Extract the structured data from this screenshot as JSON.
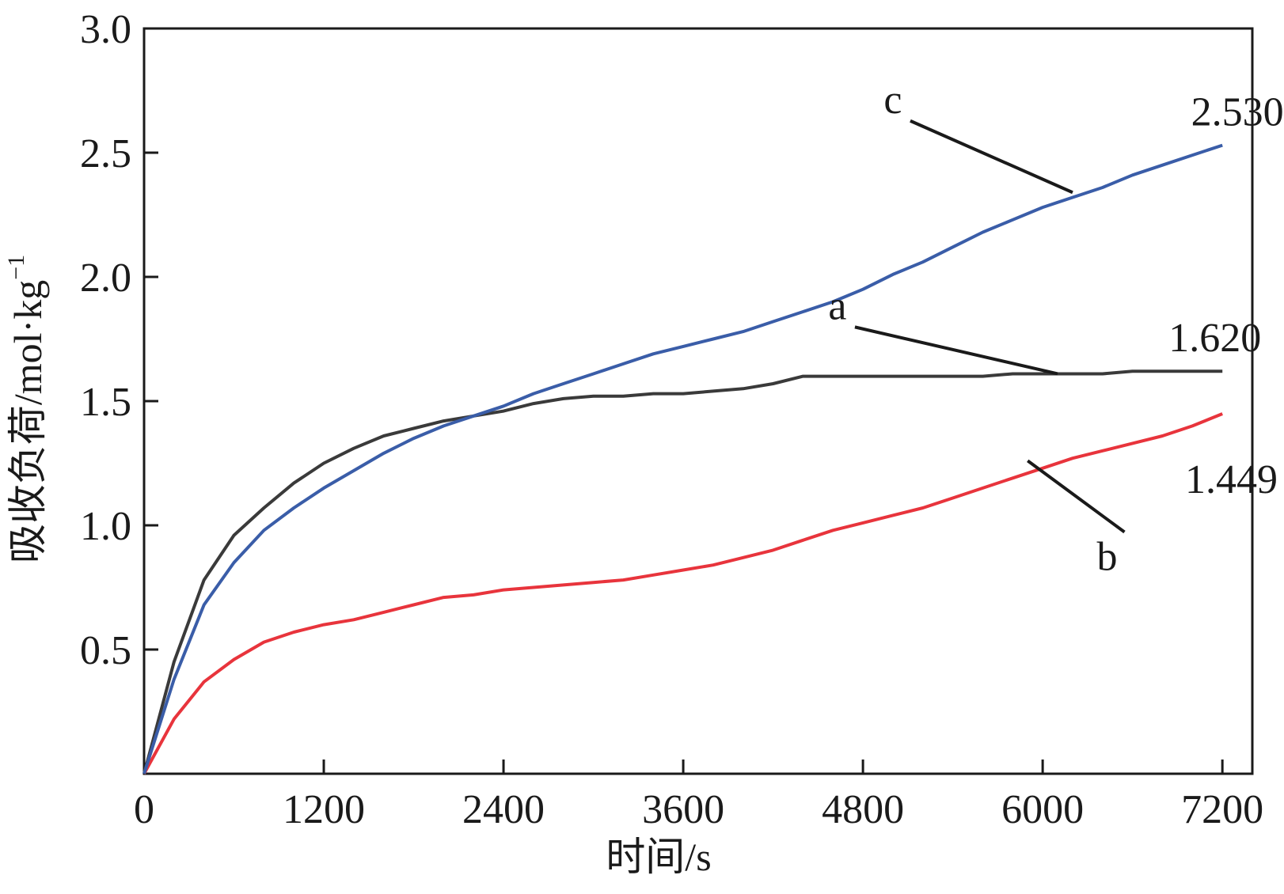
{
  "chart_data": {
    "type": "line",
    "xlabel": "时间/s",
    "ylabel": "吸收负荷/mol·kg",
    "ylabel_sup": "−1",
    "xlim": [
      0,
      7400
    ],
    "ylim": [
      0,
      3.0
    ],
    "x_ticks": [
      0,
      1200,
      2400,
      3600,
      4800,
      6000,
      7200
    ],
    "x_tick_labels": [
      "0",
      "1200",
      "2400",
      "3600",
      "4800",
      "6000",
      "7200"
    ],
    "y_ticks": [
      0.5,
      1.0,
      1.5,
      2.0,
      2.5,
      3.0
    ],
    "y_tick_labels": [
      "0.5",
      "1.0",
      "1.5",
      "2.0",
      "2.5",
      "3.0"
    ],
    "grid": false,
    "legend": "none",
    "series": [
      {
        "name": "a",
        "color": "#3a3a3a",
        "end_value_label": "1.620",
        "x": [
          0,
          200,
          400,
          600,
          800,
          1000,
          1200,
          1400,
          1600,
          1800,
          2000,
          2200,
          2400,
          2600,
          2800,
          3000,
          3200,
          3400,
          3600,
          3800,
          4000,
          4200,
          4400,
          4600,
          4800,
          5000,
          5200,
          5400,
          5600,
          5800,
          6000,
          6200,
          6400,
          6600,
          6800,
          7000,
          7200
        ],
        "y": [
          0,
          0.45,
          0.78,
          0.96,
          1.07,
          1.17,
          1.25,
          1.31,
          1.36,
          1.39,
          1.42,
          1.44,
          1.46,
          1.49,
          1.51,
          1.52,
          1.52,
          1.53,
          1.53,
          1.54,
          1.55,
          1.57,
          1.6,
          1.6,
          1.6,
          1.6,
          1.6,
          1.6,
          1.6,
          1.61,
          1.61,
          1.61,
          1.61,
          1.62,
          1.62,
          1.62,
          1.62
        ]
      },
      {
        "name": "b",
        "color": "#e8343c",
        "end_value_label": "1.449",
        "x": [
          0,
          200,
          400,
          600,
          800,
          1000,
          1200,
          1400,
          1600,
          1800,
          2000,
          2200,
          2400,
          2600,
          2800,
          3000,
          3200,
          3400,
          3600,
          3800,
          4000,
          4200,
          4400,
          4600,
          4800,
          5000,
          5200,
          5400,
          5600,
          5800,
          6000,
          6200,
          6400,
          6600,
          6800,
          7000,
          7200
        ],
        "y": [
          0,
          0.22,
          0.37,
          0.46,
          0.53,
          0.57,
          0.6,
          0.62,
          0.65,
          0.68,
          0.71,
          0.72,
          0.74,
          0.75,
          0.76,
          0.77,
          0.78,
          0.8,
          0.82,
          0.84,
          0.87,
          0.9,
          0.94,
          0.98,
          1.01,
          1.04,
          1.07,
          1.11,
          1.15,
          1.19,
          1.23,
          1.27,
          1.3,
          1.33,
          1.36,
          1.4,
          1.449
        ]
      },
      {
        "name": "c",
        "color": "#3a5da8",
        "end_value_label": "2.530",
        "x": [
          0,
          200,
          400,
          600,
          800,
          1000,
          1200,
          1400,
          1600,
          1800,
          2000,
          2200,
          2400,
          2600,
          2800,
          3000,
          3200,
          3400,
          3600,
          3800,
          4000,
          4200,
          4400,
          4600,
          4800,
          5000,
          5200,
          5400,
          5600,
          5800,
          6000,
          6200,
          6400,
          6600,
          6800,
          7000,
          7200
        ],
        "y": [
          0,
          0.38,
          0.68,
          0.85,
          0.98,
          1.07,
          1.15,
          1.22,
          1.29,
          1.35,
          1.4,
          1.44,
          1.48,
          1.53,
          1.57,
          1.61,
          1.65,
          1.69,
          1.72,
          1.75,
          1.78,
          1.82,
          1.86,
          1.9,
          1.95,
          2.01,
          2.06,
          2.12,
          2.18,
          2.23,
          2.28,
          2.32,
          2.36,
          2.41,
          2.45,
          2.49,
          2.53
        ]
      }
    ],
    "annotations": [
      {
        "series": "c",
        "text": "c",
        "label_at": [
          5000,
          2.66
        ],
        "point_at": [
          6200,
          2.34
        ],
        "value_text": "2.530",
        "value_at": [
          7300,
          2.61
        ]
      },
      {
        "series": "a",
        "text": "a",
        "label_at": [
          4630,
          1.83
        ],
        "point_at": [
          6100,
          1.61
        ],
        "value_text": "1.620",
        "value_at": [
          7150,
          1.7
        ]
      },
      {
        "series": "b",
        "text": "b",
        "label_at": [
          6430,
          0.82
        ],
        "point_at": [
          5900,
          1.26
        ],
        "value_text": "1.449",
        "value_at": [
          7260,
          1.13
        ]
      }
    ]
  }
}
